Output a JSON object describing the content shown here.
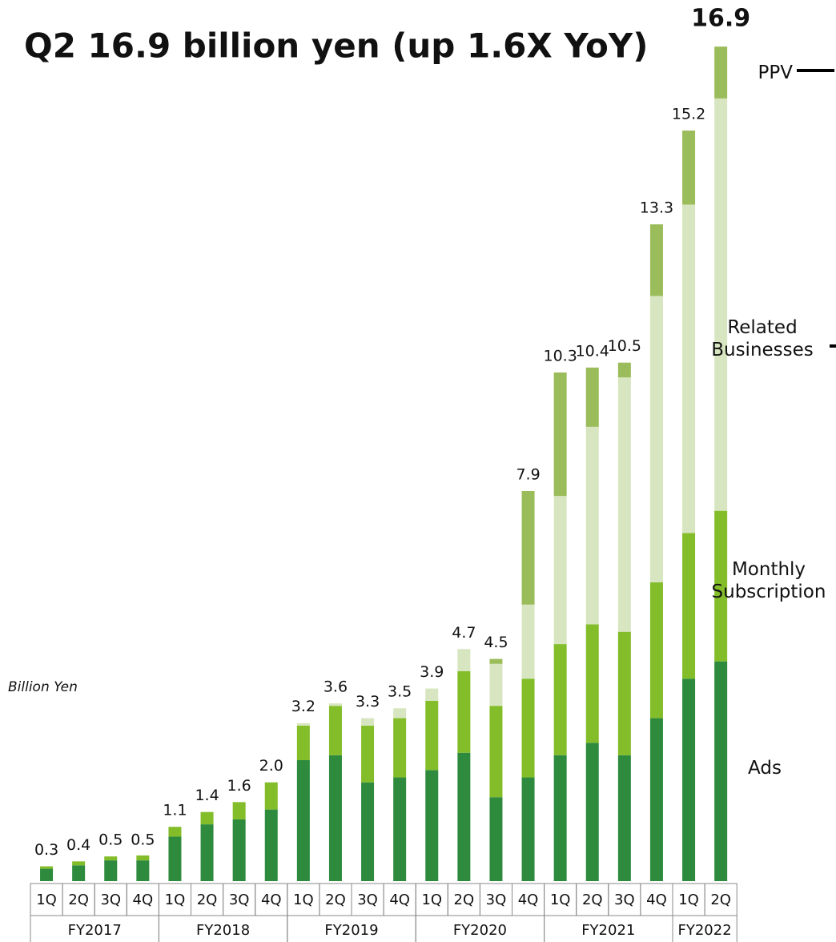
{
  "chart_data": {
    "type": "bar",
    "stacked": true,
    "title": "Q2 16.9 billion yen (up 1.6X YoY)",
    "unit_label": "Billion Yen",
    "groups": [
      {
        "label": "FY2017",
        "categories": [
          "1Q",
          "2Q",
          "3Q",
          "4Q"
        ]
      },
      {
        "label": "FY2018",
        "categories": [
          "1Q",
          "2Q",
          "3Q",
          "4Q"
        ]
      },
      {
        "label": "FY2019",
        "categories": [
          "1Q",
          "2Q",
          "3Q",
          "4Q"
        ]
      },
      {
        "label": "FY2020",
        "categories": [
          "1Q",
          "2Q",
          "3Q",
          "4Q"
        ]
      },
      {
        "label": "FY2021",
        "categories": [
          "1Q",
          "2Q",
          "3Q",
          "4Q"
        ]
      },
      {
        "label": "FY2022",
        "categories": [
          "1Q",
          "2Q"
        ]
      }
    ],
    "series": [
      {
        "name": "Ads",
        "color": "#2e8b3e",
        "values": [
          0.25,
          0.32,
          0.42,
          0.42,
          0.9,
          1.15,
          1.25,
          1.45,
          2.45,
          2.55,
          2.0,
          2.1,
          2.25,
          2.6,
          1.7,
          2.1,
          2.55,
          2.8,
          2.55,
          3.3,
          4.1,
          4.45
        ]
      },
      {
        "name": "Monthly Subscription",
        "color": "#84bd2a",
        "values": [
          0.05,
          0.08,
          0.08,
          0.1,
          0.2,
          0.25,
          0.35,
          0.55,
          0.7,
          1.0,
          1.15,
          1.2,
          1.4,
          1.65,
          1.85,
          2.0,
          2.25,
          2.4,
          2.5,
          2.75,
          2.95,
          3.05
        ]
      },
      {
        "name": "Related Businesses",
        "color": "#d7e6c0",
        "values": [
          0,
          0,
          0,
          0,
          0,
          0,
          0,
          0,
          0.05,
          0.05,
          0.15,
          0.2,
          0.25,
          0.45,
          0.85,
          1.5,
          3.0,
          4.0,
          5.15,
          5.8,
          6.65,
          8.35
        ]
      },
      {
        "name": "PPV",
        "color": "#9bbc5a",
        "values": [
          0,
          0,
          0,
          0,
          0,
          0,
          0,
          0,
          0,
          0,
          0,
          0,
          0,
          0,
          0.1,
          2.3,
          2.5,
          1.2,
          0.3,
          1.45,
          1.5,
          1.05
        ]
      }
    ],
    "totals": [
      0.3,
      0.4,
      0.5,
      0.5,
      1.1,
      1.4,
      1.6,
      2.0,
      3.2,
      3.6,
      3.3,
      3.5,
      3.9,
      4.7,
      4.5,
      7.9,
      10.3,
      10.4,
      10.5,
      13.3,
      15.2,
      16.9
    ],
    "total_labels": [
      "0.3",
      "0.4",
      "0.5",
      "0.5",
      "1.1",
      "1.4",
      "1.6",
      "2.0",
      "3.2",
      "3.6",
      "3.3",
      "3.5",
      "3.9",
      "4.7",
      "4.5",
      "7.9",
      "10.3",
      "10.4",
      "10.5",
      "13.3",
      "15.2",
      "16.9"
    ],
    "ylim": [
      0,
      17
    ]
  }
}
